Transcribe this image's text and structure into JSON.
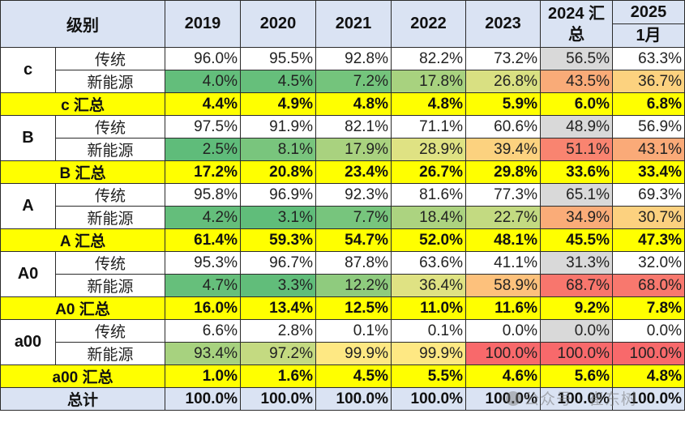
{
  "header": {
    "level_label": "级别",
    "years": [
      "2019",
      "2020",
      "2021",
      "2022",
      "2023"
    ],
    "y2024_line1": "2024 汇",
    "y2024_line2": "总",
    "y2025_line1": "2025",
    "y2025_line2": "1月"
  },
  "groups": [
    {
      "level": "c",
      "traditional": {
        "label": "传统",
        "values": [
          "96.0%",
          "95.5%",
          "92.8%",
          "82.2%",
          "73.2%",
          "56.5%",
          "63.3%"
        ]
      },
      "nev": {
        "label": "新能源",
        "values": [
          "4.0%",
          "4.5%",
          "7.2%",
          "17.8%",
          "26.8%",
          "43.5%",
          "36.7%"
        ],
        "colors": [
          "#63be7b",
          "#66bf7b",
          "#74c47c",
          "#a8d27f",
          "#d9e082",
          "#f9ab78",
          "#fcd27f"
        ]
      },
      "summary": {
        "label": "c 汇总",
        "values": [
          "4.4%",
          "4.9%",
          "4.8%",
          "4.8%",
          "5.9%",
          "6.0%",
          "6.8%"
        ]
      }
    },
    {
      "level": "B",
      "traditional": {
        "label": "传统",
        "values": [
          "97.5%",
          "91.9%",
          "82.1%",
          "71.1%",
          "60.6%",
          "48.9%",
          "56.9%"
        ]
      },
      "nev": {
        "label": "新能源",
        "values": [
          "2.5%",
          "8.1%",
          "17.9%",
          "28.9%",
          "39.4%",
          "51.1%",
          "43.1%"
        ],
        "colors": [
          "#5fbc7a",
          "#79c57d",
          "#a9d27f",
          "#dfe283",
          "#fcd27f",
          "#f98470",
          "#faaa78"
        ]
      },
      "summary": {
        "label": "B 汇总",
        "values": [
          "17.2%",
          "20.8%",
          "23.4%",
          "26.7%",
          "29.8%",
          "33.6%",
          "33.4%"
        ]
      }
    },
    {
      "level": "A",
      "traditional": {
        "label": "传统",
        "values": [
          "95.8%",
          "96.9%",
          "92.3%",
          "81.6%",
          "77.3%",
          "65.1%",
          "69.3%"
        ]
      },
      "nev": {
        "label": "新能源",
        "values": [
          "4.2%",
          "3.1%",
          "7.7%",
          "18.4%",
          "22.7%",
          "34.9%",
          "30.7%"
        ],
        "colors": [
          "#64be7b",
          "#60bd7a",
          "#77c57d",
          "#acd380",
          "#c3da81",
          "#faac78",
          "#fcd17f"
        ]
      },
      "summary": {
        "label": "A 汇总",
        "values": [
          "61.4%",
          "59.3%",
          "54.7%",
          "52.0%",
          "48.1%",
          "45.5%",
          "47.3%"
        ]
      }
    },
    {
      "level": "A0",
      "traditional": {
        "label": "传统",
        "values": [
          "95.3%",
          "96.7%",
          "87.8%",
          "63.6%",
          "41.1%",
          "31.3%",
          "32.0%"
        ]
      },
      "nev": {
        "label": "新能源",
        "values": [
          "4.7%",
          "3.3%",
          "12.2%",
          "36.4%",
          "58.9%",
          "68.7%",
          "68.0%"
        ],
        "colors": [
          "#66bf7b",
          "#61bd7a",
          "#8fcb7e",
          "#dfe283",
          "#fdc17c",
          "#f8766d",
          "#f8786e"
        ]
      },
      "summary": {
        "label": "A0 汇总",
        "values": [
          "16.0%",
          "13.4%",
          "12.5%",
          "11.0%",
          "11.6%",
          "9.2%",
          "7.8%"
        ]
      }
    },
    {
      "level": "a00",
      "traditional": {
        "label": "传统",
        "values": [
          "6.6%",
          "2.8%",
          "0.1%",
          "0.1%",
          "0.0%",
          "0.0%",
          "0.0%"
        ]
      },
      "nev": {
        "label": "新能源",
        "values": [
          "93.4%",
          "97.2%",
          "99.9%",
          "99.9%",
          "100.0%",
          "100.0%",
          "100.0%"
        ],
        "colors": [
          "#a7d27f",
          "#c4da81",
          "#fee883",
          "#fee883",
          "#f8696b",
          "#f8696b",
          "#f8696b"
        ]
      },
      "summary": {
        "label": "a00 汇总",
        "values": [
          "1.0%",
          "1.6%",
          "4.5%",
          "5.5%",
          "4.6%",
          "5.6%",
          "4.8%"
        ]
      }
    }
  ],
  "total": {
    "label": "总计",
    "values": [
      "100.0%",
      "100.0%",
      "100.0%",
      "100.0%",
      "100.0%",
      "100.0%",
      "100.0%"
    ]
  },
  "watermark": "公众号 · 崔东树"
}
